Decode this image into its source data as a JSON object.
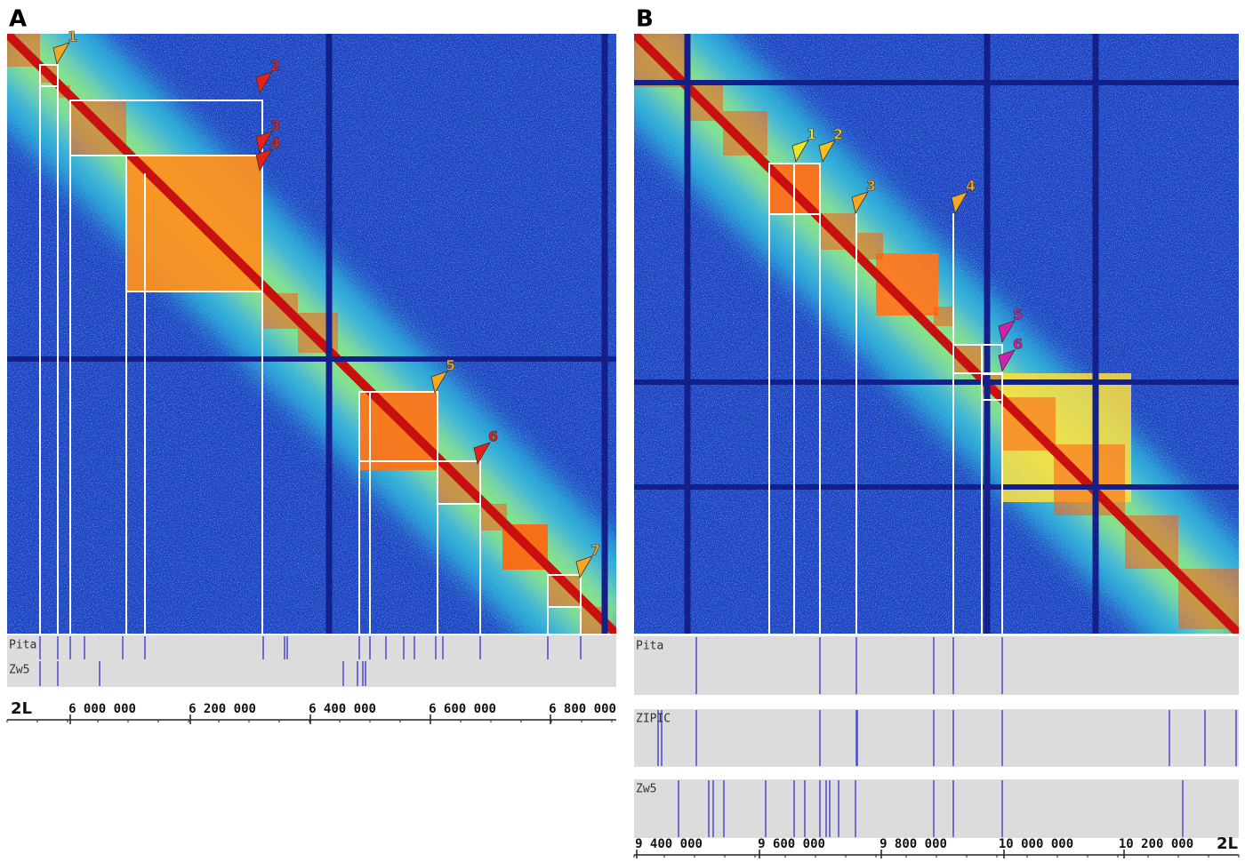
{
  "panels": [
    {
      "label": "A",
      "arrows": [
        "1",
        "2",
        "3",
        "4",
        "5",
        "6",
        "7"
      ],
      "tracks": [
        "Pita",
        "Zw5"
      ],
      "axis": {
        "chromosome": "2L",
        "ticks": [
          "6 000 000",
          "6 200 000",
          "6 400 000",
          "6 600 000",
          "6 800 000"
        ]
      }
    },
    {
      "label": "B",
      "arrows": [
        "1",
        "2",
        "3",
        "4",
        "5",
        "6"
      ],
      "tracks": [
        "Pita",
        "ZIPIC",
        "Zw5"
      ],
      "axis": {
        "chromosome": "2L",
        "ticks": [
          "9 400 000",
          "9 600 000",
          "9 800 000",
          "10 000 000",
          "10 200 000"
        ]
      }
    }
  ]
}
